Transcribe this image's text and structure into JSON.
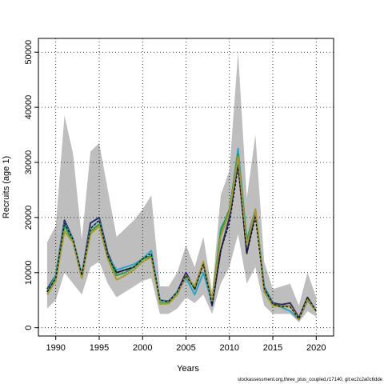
{
  "chart_data": {
    "type": "line",
    "title": "",
    "xlabel": "Years",
    "ylabel": "Recruits (age 1)",
    "xlim": [
      1988,
      2022
    ],
    "ylim": [
      -1500,
      52500
    ],
    "xticks": [
      1990,
      1995,
      2000,
      2005,
      2010,
      2015,
      2020
    ],
    "yticks": [
      0,
      10000,
      20000,
      30000,
      40000,
      50000
    ],
    "grid": true,
    "footer": "stockassessment.org,three_plus_coupled,r17140, git:ec2c2a0c6dde",
    "band": {
      "color": "#bebebe",
      "x": [
        1989,
        1990,
        1991,
        1992,
        1993,
        1994,
        1995,
        1996,
        1997,
        1998,
        1999,
        2000,
        2001,
        2002,
        2003,
        2004,
        2005,
        2006,
        2007,
        2008,
        2009,
        2010,
        2011,
        2012,
        2013,
        2014,
        2015,
        2016,
        2017,
        2018,
        2019,
        2020
      ],
      "lower": [
        3500,
        5000,
        10000,
        8000,
        6000,
        11000,
        12000,
        8000,
        5500,
        6500,
        7500,
        8500,
        9000,
        2500,
        2500,
        3500,
        5500,
        4500,
        6000,
        2500,
        8000,
        11000,
        17000,
        8000,
        11000,
        4000,
        2500,
        2500,
        2500,
        1000,
        3000,
        2000
      ],
      "upper": [
        15500,
        18500,
        38500,
        31500,
        16000,
        32000,
        33500,
        25000,
        16500,
        18000,
        19500,
        21500,
        24000,
        7500,
        7500,
        10000,
        15000,
        11000,
        16500,
        6500,
        24000,
        28500,
        50000,
        23500,
        35000,
        12000,
        7000,
        7500,
        8000,
        4000,
        10000,
        5500
      ]
    },
    "series": [
      {
        "color": "#2b2b70",
        "dash": false,
        "values": [
          7000,
          9500,
          19500,
          16000,
          9500,
          19000,
          20000,
          13500,
          10000,
          10500,
          11000,
          12500,
          13000,
          5000,
          4800,
          6500,
          10000,
          7000,
          11800,
          4000,
          14000,
          20000,
          30000,
          13500,
          21000,
          7500,
          4500,
          4200,
          4500,
          1800,
          5500,
          3000
        ]
      },
      {
        "color": "#2aa5c8",
        "dash": false,
        "values": [
          6500,
          9500,
          19000,
          16000,
          9500,
          18000,
          19500,
          13000,
          10500,
          11000,
          11500,
          12500,
          14000,
          5000,
          4700,
          6500,
          9000,
          6000,
          10000,
          4500,
          18000,
          21000,
          32500,
          16000,
          21500,
          7500,
          4300,
          3700,
          3000,
          1500,
          5000,
          3000
        ]
      },
      {
        "color": "#2d9a3e",
        "dash": false,
        "values": [
          6500,
          9000,
          18500,
          15500,
          9000,
          17500,
          18800,
          13000,
          9500,
          10000,
          11000,
          12500,
          13000,
          4500,
          4500,
          6000,
          9500,
          7200,
          11800,
          5000,
          17500,
          21500,
          31500,
          15500,
          21500,
          7000,
          4200,
          4000,
          4000,
          1500,
          5000,
          3000
        ]
      },
      {
        "color": "#a89a2a",
        "dash": false,
        "values": [
          6000,
          8500,
          17500,
          15500,
          9000,
          17000,
          18500,
          12500,
          8700,
          9500,
          10500,
          12000,
          12800,
          4300,
          4400,
          6000,
          9500,
          7500,
          12000,
          5000,
          16500,
          21000,
          31000,
          15000,
          21500,
          6500,
          4000,
          3800,
          4000,
          1500,
          5200,
          3000
        ]
      },
      {
        "color": "#111111",
        "dash": true,
        "values": [
          6500,
          9000,
          19000,
          16000,
          9500,
          18000,
          19500,
          13000,
          10000,
          10500,
          11000,
          12500,
          13500,
          5000,
          4700,
          6500,
          9500,
          7000,
          11500,
          4200,
          14000,
          19000,
          29000,
          13500,
          20000,
          7200,
          4300,
          3800,
          3800,
          1600,
          5500,
          3000
        ]
      }
    ]
  }
}
